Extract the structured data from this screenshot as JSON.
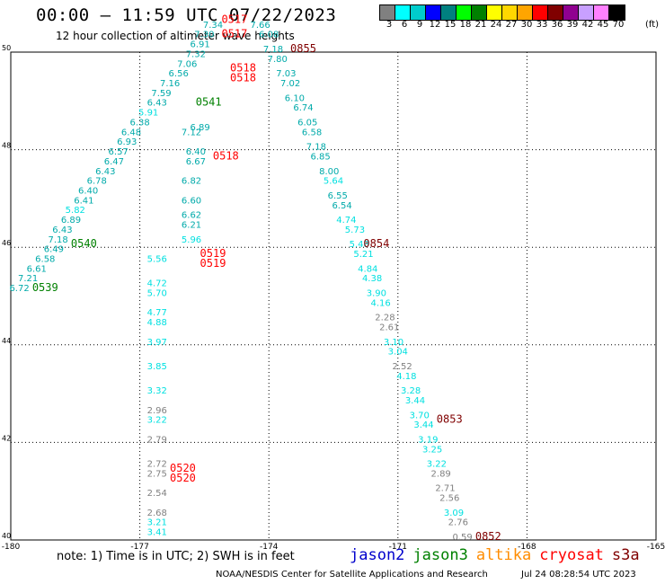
{
  "title": "00:00 – 11:59 UTC 07/22/2023",
  "subtitle": "12 hour collection of altimeter wave heights",
  "legend": {
    "colors": [
      "#808080",
      "#00ffff",
      "#00cccc",
      "#0000ff",
      "#008080",
      "#00ff00",
      "#008000",
      "#ffff00",
      "#ffd700",
      "#ffa500",
      "#ff0000",
      "#800000",
      "#900090",
      "#c8a0ff",
      "#ff80ff",
      "#000000"
    ],
    "labels": [
      "3",
      "6",
      "9",
      "12",
      "15",
      "18",
      "21",
      "24",
      "27",
      "30",
      "33",
      "36",
      "39",
      "42",
      "45",
      "70"
    ],
    "unit": "(ft)"
  },
  "note": "note: 1) Time is in UTC; 2) SWH is in feet",
  "missions": [
    {
      "name": "jason2",
      "color": "#0000cc"
    },
    {
      "name": "jason3",
      "color": "#008000"
    },
    {
      "name": "altika",
      "color": "#ff8c00"
    },
    {
      "name": "cryosat",
      "color": "#ff0000"
    },
    {
      "name": "s3a",
      "color": "#800000"
    }
  ],
  "credit": "NOAA/NESDIS Center for Satellite Applications and Research",
  "timestamp": "Jul 24 08:28:54 UTC 2023",
  "chart_data": {
    "type": "scatter",
    "xlim": [
      -180,
      -165
    ],
    "ylim": [
      40,
      50
    ],
    "xticks": [
      "-180",
      "-177",
      "-174",
      "-171",
      "-168",
      "-165"
    ],
    "yticks": [
      "40",
      "42",
      "44",
      "46",
      "48",
      "50"
    ],
    "grid": true,
    "series": [
      {
        "name": "jason3",
        "color": "#00cccc",
        "points": [
          {
            "x": -179.8,
            "y": 45.1,
            "label": "6.72"
          },
          {
            "x": -179.6,
            "y": 45.3,
            "label": "7.21"
          },
          {
            "x": -179.4,
            "y": 45.5,
            "label": "6.61"
          },
          {
            "x": -179.2,
            "y": 45.7,
            "label": "6.58"
          },
          {
            "x": -179.0,
            "y": 45.9,
            "label": "6.49"
          },
          {
            "x": -178.9,
            "y": 46.1,
            "label": "7.18"
          },
          {
            "x": -178.8,
            "y": 46.3,
            "label": "6.43"
          },
          {
            "x": -178.6,
            "y": 46.5,
            "label": "6.89"
          },
          {
            "x": -178.5,
            "y": 46.7,
            "label": "5.82"
          },
          {
            "x": -178.3,
            "y": 46.9,
            "label": "6.41"
          },
          {
            "x": -178.2,
            "y": 47.1,
            "label": "6.40"
          },
          {
            "x": -178.0,
            "y": 47.3,
            "label": "6.78"
          },
          {
            "x": -177.8,
            "y": 47.5,
            "label": "6.43"
          },
          {
            "x": -177.6,
            "y": 47.7,
            "label": "6.47"
          },
          {
            "x": -177.5,
            "y": 47.9,
            "label": "6.57"
          },
          {
            "x": -177.3,
            "y": 48.1,
            "label": "6.93"
          },
          {
            "x": -177.2,
            "y": 48.3,
            "label": "6.48"
          },
          {
            "x": -177.0,
            "y": 48.5,
            "label": "6.38"
          },
          {
            "x": -176.8,
            "y": 48.7,
            "label": "5.91"
          },
          {
            "x": -176.6,
            "y": 48.9,
            "label": "6.43"
          },
          {
            "x": -176.5,
            "y": 49.1,
            "label": "7.59"
          },
          {
            "x": -176.3,
            "y": 49.3,
            "label": "7.16"
          },
          {
            "x": -176.1,
            "y": 49.5,
            "label": "6.56"
          },
          {
            "x": -175.9,
            "y": 49.7,
            "label": "7.06"
          },
          {
            "x": -175.7,
            "y": 49.9,
            "label": "7.32"
          },
          {
            "x": -175.6,
            "y": 50.1,
            "label": "6.91"
          },
          {
            "x": -175.5,
            "y": 50.3,
            "label": "7.30"
          },
          {
            "x": -175.3,
            "y": 50.5,
            "label": "7.34"
          }
        ]
      },
      {
        "name": "cryosat",
        "color": "#00cccc",
        "points": [
          {
            "x": -176.6,
            "y": 40.1,
            "label": "3.41"
          },
          {
            "x": -176.6,
            "y": 40.3,
            "label": "3.21"
          },
          {
            "x": -176.6,
            "y": 40.5,
            "label": "2.68"
          },
          {
            "x": -176.6,
            "y": 40.9,
            "label": "2.54"
          },
          {
            "x": -176.6,
            "y": 41.3,
            "label": "2.75"
          },
          {
            "x": -176.6,
            "y": 41.5,
            "label": "2.72"
          },
          {
            "x": -176.6,
            "y": 42.0,
            "label": "2.79"
          },
          {
            "x": -176.6,
            "y": 42.4,
            "label": "3.22"
          },
          {
            "x": -176.6,
            "y": 42.6,
            "label": "2.96"
          },
          {
            "x": -176.6,
            "y": 43.0,
            "label": "3.32"
          },
          {
            "x": -176.6,
            "y": 43.5,
            "label": "3.85"
          },
          {
            "x": -176.6,
            "y": 44.0,
            "label": "3.97"
          },
          {
            "x": -176.6,
            "y": 44.4,
            "label": "4.88"
          },
          {
            "x": -176.6,
            "y": 44.6,
            "label": "4.77"
          },
          {
            "x": -176.6,
            "y": 45.0,
            "label": "5.70"
          },
          {
            "x": -176.6,
            "y": 45.2,
            "label": "4.72"
          },
          {
            "x": -176.6,
            "y": 45.7,
            "label": "5.56"
          },
          {
            "x": -175.8,
            "y": 46.1,
            "label": "5.96"
          },
          {
            "x": -175.8,
            "y": 46.4,
            "label": "6.21"
          },
          {
            "x": -175.8,
            "y": 46.6,
            "label": "6.62"
          },
          {
            "x": -175.8,
            "y": 46.9,
            "label": "6.60"
          },
          {
            "x": -175.8,
            "y": 47.3,
            "label": "6.82"
          },
          {
            "x": -175.7,
            "y": 47.7,
            "label": "6.67"
          },
          {
            "x": -175.7,
            "y": 47.9,
            "label": "6.40"
          },
          {
            "x": -175.8,
            "y": 48.3,
            "label": "7.12"
          },
          {
            "x": -175.6,
            "y": 48.4,
            "label": "6.89"
          }
        ]
      },
      {
        "name": "s3a",
        "color": "#00cccc",
        "points": [
          {
            "x": -174.2,
            "y": 50.5,
            "label": "7.66"
          },
          {
            "x": -174.0,
            "y": 50.3,
            "label": "6.08"
          },
          {
            "x": -173.9,
            "y": 50.0,
            "label": "7.18"
          },
          {
            "x": -173.8,
            "y": 49.8,
            "label": "7.80"
          },
          {
            "x": -173.6,
            "y": 49.5,
            "label": "7.03"
          },
          {
            "x": -173.5,
            "y": 49.3,
            "label": "7.02"
          },
          {
            "x": -173.4,
            "y": 49.0,
            "label": "6.10"
          },
          {
            "x": -173.2,
            "y": 48.8,
            "label": "6.74"
          },
          {
            "x": -173.1,
            "y": 48.5,
            "label": "6.05"
          },
          {
            "x": -173.0,
            "y": 48.3,
            "label": "6.58"
          },
          {
            "x": -172.9,
            "y": 48.0,
            "label": "7.18"
          },
          {
            "x": -172.8,
            "y": 47.8,
            "label": "6.85"
          },
          {
            "x": -172.6,
            "y": 47.5,
            "label": "8.00"
          },
          {
            "x": -172.5,
            "y": 47.3,
            "label": "5.64"
          },
          {
            "x": -172.4,
            "y": 47.0,
            "label": "6.55"
          },
          {
            "x": -172.3,
            "y": 46.8,
            "label": "6.54"
          },
          {
            "x": -172.2,
            "y": 46.5,
            "label": "4.74"
          },
          {
            "x": -172.0,
            "y": 46.3,
            "label": "5.73"
          },
          {
            "x": -171.9,
            "y": 46.0,
            "label": "5.48"
          },
          {
            "x": -171.8,
            "y": 45.8,
            "label": "5.21"
          },
          {
            "x": -171.7,
            "y": 45.5,
            "label": "4.84"
          },
          {
            "x": -171.6,
            "y": 45.3,
            "label": "4.38"
          },
          {
            "x": -171.5,
            "y": 45.0,
            "label": "3.90"
          },
          {
            "x": -171.4,
            "y": 44.8,
            "label": "4.16"
          },
          {
            "x": -171.3,
            "y": 44.5,
            "label": "2.28"
          },
          {
            "x": -171.2,
            "y": 44.3,
            "label": "2.61"
          },
          {
            "x": -171.1,
            "y": 44.0,
            "label": "3.10"
          },
          {
            "x": -171.0,
            "y": 43.8,
            "label": "3.04"
          },
          {
            "x": -170.9,
            "y": 43.5,
            "label": "2.52"
          },
          {
            "x": -170.8,
            "y": 43.3,
            "label": "4.18"
          },
          {
            "x": -170.7,
            "y": 43.0,
            "label": "3.28"
          },
          {
            "x": -170.6,
            "y": 42.8,
            "label": "3.44"
          },
          {
            "x": -170.5,
            "y": 42.5,
            "label": "3.70"
          },
          {
            "x": -170.4,
            "y": 42.3,
            "label": "3.44"
          },
          {
            "x": -170.3,
            "y": 42.0,
            "label": "3.19"
          },
          {
            "x": -170.2,
            "y": 41.8,
            "label": "3.25"
          },
          {
            "x": -170.1,
            "y": 41.5,
            "label": "3.22"
          },
          {
            "x": -170.0,
            "y": 41.3,
            "label": "2.89"
          },
          {
            "x": -169.9,
            "y": 41.0,
            "label": "2.71"
          },
          {
            "x": -169.8,
            "y": 40.8,
            "label": "2.56"
          },
          {
            "x": -169.7,
            "y": 40.5,
            "label": "3.09"
          },
          {
            "x": -169.6,
            "y": 40.3,
            "label": "2.76"
          },
          {
            "x": -169.5,
            "y": 40.0,
            "label": "0.59"
          }
        ]
      }
    ],
    "time_labels": [
      {
        "x": -179.2,
        "y": 45.1,
        "text": "0539",
        "color": "#008000"
      },
      {
        "x": -178.3,
        "y": 46.0,
        "text": "0540",
        "color": "#008000"
      },
      {
        "x": -175.4,
        "y": 48.9,
        "text": "0541",
        "color": "#008000"
      },
      {
        "x": -174.8,
        "y": 50.6,
        "text": "0517",
        "color": "#ff0000"
      },
      {
        "x": -174.8,
        "y": 50.3,
        "text": "0517",
        "color": "#ff0000"
      },
      {
        "x": -174.6,
        "y": 49.6,
        "text": "0518",
        "color": "#ff0000"
      },
      {
        "x": -174.6,
        "y": 49.4,
        "text": "0518",
        "color": "#ff0000"
      },
      {
        "x": -175.0,
        "y": 47.8,
        "text": "0518",
        "color": "#ff0000"
      },
      {
        "x": -175.3,
        "y": 45.8,
        "text": "0519",
        "color": "#ff0000"
      },
      {
        "x": -175.3,
        "y": 45.6,
        "text": "0519",
        "color": "#ff0000"
      },
      {
        "x": -176.0,
        "y": 41.4,
        "text": "0520",
        "color": "#ff0000"
      },
      {
        "x": -176.0,
        "y": 41.2,
        "text": "0520",
        "color": "#ff0000"
      },
      {
        "x": -173.2,
        "y": 50.0,
        "text": "0855",
        "color": "#800000"
      },
      {
        "x": -171.5,
        "y": 46.0,
        "text": "0854",
        "color": "#800000"
      },
      {
        "x": -169.8,
        "y": 42.4,
        "text": "0853",
        "color": "#800000"
      },
      {
        "x": -168.9,
        "y": 40.0,
        "text": "0852",
        "color": "#800000"
      }
    ]
  }
}
